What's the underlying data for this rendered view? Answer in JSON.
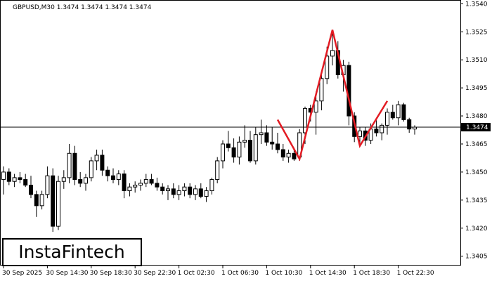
{
  "chart_data": {
    "type": "candlestick",
    "title": "GBPUSD,M30  1.3474 1.3474 1.3474 1.3474",
    "logo": "InstaFintech",
    "categories": [
      "30 Sep 2025",
      null,
      null,
      null,
      null,
      null,
      null,
      null,
      "30 Sep 14:30",
      null,
      null,
      null,
      null,
      null,
      null,
      null,
      "30 Sep 18:30",
      null,
      null,
      null,
      null,
      null,
      null,
      null,
      "30 Sep 22:30",
      null,
      null,
      null,
      null,
      null,
      null,
      null,
      "1 Oct 02:30",
      null,
      null,
      null,
      null,
      null,
      null,
      null,
      "1 Oct 06:30",
      null,
      null,
      null,
      null,
      null,
      null,
      null,
      "1 Oct 10:30",
      null,
      null,
      null,
      null,
      null,
      null,
      null,
      "1 Oct 14:30",
      null,
      null,
      null,
      null,
      null,
      null,
      null,
      "1 Oct 18:30",
      null,
      null,
      null,
      null,
      null,
      null,
      null,
      "1 Oct 22:30",
      null,
      null,
      null
    ],
    "open": [
      1.3446,
      1.345,
      1.3445,
      1.3447,
      1.3446,
      1.3443,
      1.3438,
      1.3432,
      1.3438,
      1.3448,
      1.3421,
      1.3445,
      1.3447,
      1.346,
      1.3446,
      1.3444,
      1.3447,
      1.3456,
      1.3459,
      1.3451,
      1.3448,
      1.3446,
      1.3449,
      1.344,
      1.3442,
      1.3443,
      1.3444,
      1.3446,
      1.3444,
      1.3442,
      1.344,
      1.3441,
      1.3438,
      1.344,
      1.3442,
      1.3438,
      1.3441,
      1.3437,
      1.344,
      1.3446,
      1.3456,
      1.3465,
      1.3463,
      1.3458,
      1.3466,
      1.3467,
      1.3456,
      1.347,
      1.3471,
      1.3466,
      1.3465,
      1.3462,
      1.3458,
      1.346,
      1.3458,
      1.3471,
      1.3484,
      1.3482,
      1.3488,
      1.35,
      1.3512,
      1.3515,
      1.3502,
      1.3507,
      1.348,
      1.3469,
      1.3472,
      1.3467,
      1.3473,
      1.3471,
      1.3475,
      1.3482,
      1.3479,
      1.3486,
      1.3478,
      1.3473
    ],
    "high": [
      1.3453,
      1.3452,
      1.3449,
      1.345,
      1.3449,
      1.3448,
      1.344,
      1.344,
      1.3453,
      1.3452,
      1.3448,
      1.3451,
      1.3465,
      1.3464,
      1.345,
      1.3449,
      1.3458,
      1.3462,
      1.3462,
      1.3453,
      1.3452,
      1.3451,
      1.3451,
      1.3444,
      1.3445,
      1.3446,
      1.3449,
      1.3449,
      1.3447,
      1.3444,
      1.3443,
      1.3444,
      1.3443,
      1.3444,
      1.3444,
      1.3443,
      1.3444,
      1.3442,
      1.3447,
      1.3458,
      1.3467,
      1.3472,
      1.3468,
      1.3469,
      1.3475,
      1.3472,
      1.3474,
      1.3478,
      1.3475,
      1.3474,
      1.3471,
      1.3465,
      1.3462,
      1.3463,
      1.3473,
      1.3485,
      1.3486,
      1.3493,
      1.3503,
      1.3517,
      1.3526,
      1.352,
      1.351,
      1.3509,
      1.3482,
      1.3474,
      1.3474,
      1.3476,
      1.3478,
      1.3476,
      1.3484,
      1.3486,
      1.3488,
      1.3487,
      1.3479,
      1.3475
    ],
    "low": [
      1.3438,
      1.3443,
      1.3442,
      1.3444,
      1.3442,
      1.3436,
      1.3426,
      1.343,
      1.3436,
      1.3418,
      1.3419,
      1.3441,
      1.3444,
      1.3443,
      1.3442,
      1.344,
      1.3445,
      1.3451,
      1.3448,
      1.3445,
      1.3444,
      1.3443,
      1.3436,
      1.3437,
      1.3439,
      1.344,
      1.3442,
      1.3443,
      1.344,
      1.3438,
      1.3435,
      1.3436,
      1.3435,
      1.3437,
      1.3436,
      1.3435,
      1.3436,
      1.3434,
      1.3438,
      1.3444,
      1.3452,
      1.3461,
      1.3455,
      1.3454,
      1.3463,
      1.3455,
      1.3454,
      1.3465,
      1.3464,
      1.3462,
      1.346,
      1.3456,
      1.3455,
      1.3456,
      1.3456,
      1.3465,
      1.3477,
      1.347,
      1.3483,
      1.3497,
      1.3507,
      1.35,
      1.3493,
      1.3475,
      1.3466,
      1.3464,
      1.3464,
      1.3465,
      1.3469,
      1.3467,
      1.347,
      1.3478,
      1.3475,
      1.3477,
      1.3471,
      1.347
    ],
    "close": [
      1.345,
      1.3445,
      1.3447,
      1.3446,
      1.3443,
      1.3438,
      1.3432,
      1.3438,
      1.3448,
      1.3421,
      1.3445,
      1.3447,
      1.346,
      1.3446,
      1.3444,
      1.3447,
      1.3456,
      1.3459,
      1.3451,
      1.3448,
      1.3446,
      1.3449,
      1.344,
      1.3442,
      1.3443,
      1.3444,
      1.3446,
      1.3444,
      1.3442,
      1.344,
      1.3441,
      1.3438,
      1.344,
      1.3442,
      1.3438,
      1.3441,
      1.3437,
      1.344,
      1.3446,
      1.3456,
      1.3465,
      1.3463,
      1.3458,
      1.3466,
      1.3467,
      1.3456,
      1.347,
      1.3471,
      1.3466,
      1.3465,
      1.3462,
      1.3458,
      1.346,
      1.3457,
      1.3471,
      1.3484,
      1.3482,
      1.3488,
      1.35,
      1.3512,
      1.3515,
      1.3502,
      1.3507,
      1.348,
      1.3469,
      1.3472,
      1.3467,
      1.3473,
      1.3471,
      1.3475,
      1.3482,
      1.3479,
      1.3486,
      1.3478,
      1.3473,
      1.3474
    ],
    "pattern": {
      "color": "#e31b23",
      "x": [
        50,
        54,
        60,
        65,
        70
      ],
      "y": [
        1.3478,
        1.3457,
        1.3526,
        1.3464,
        1.3488
      ]
    },
    "current_price": 1.3474,
    "ylim": [
      1.34,
      1.3542
    ],
    "yticks": [
      {
        "value": 1.354,
        "label": "1.3540"
      },
      1.3525,
      {
        "value": 1.351,
        "label": "1.3510"
      },
      1.3495,
      {
        "value": 1.348,
        "label": "1.3480"
      },
      1.3465,
      {
        "value": 1.345,
        "label": "1.3450"
      },
      1.3435,
      {
        "value": 1.342,
        "label": "1.3420"
      },
      1.3405
    ]
  }
}
